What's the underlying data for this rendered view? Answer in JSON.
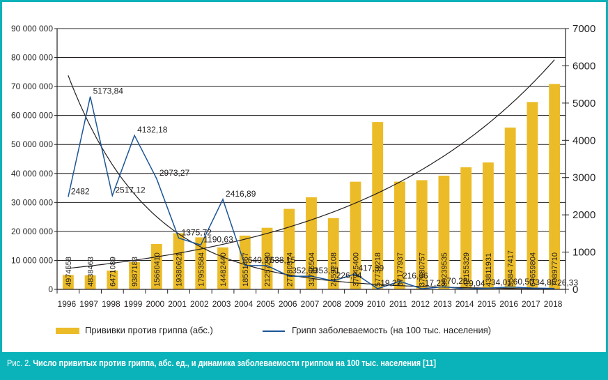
{
  "chart_data": {
    "type": "bar",
    "title": "",
    "categories": [
      "1996",
      "1997",
      "1998",
      "1999",
      "2000",
      "2001",
      "2002",
      "2003",
      "2004",
      "2005",
      "2006",
      "2007",
      "2008",
      "2009",
      "2010",
      "2011",
      "2012",
      "2013",
      "2014",
      "2015",
      "2016",
      "2017",
      "2018"
    ],
    "series": [
      {
        "name": "Прививки против гриппа (абс.)",
        "type": "bar",
        "axis": "left",
        "color": "#ecbc28",
        "values": [
          4974558,
          4838463,
          6471089,
          9387183,
          15660410,
          19380621,
          17953584,
          14482440,
          18551467,
          21257230,
          27780574,
          31786504,
          24592108,
          37145400,
          57731218,
          37177937,
          37680757,
          39239535,
          42155329,
          43811931,
          55847417,
          64659804,
          70897710
        ],
        "labels": [
          "4974558",
          "4838463",
          "6471089",
          "9387183",
          "15660410",
          "19380621",
          "17953584",
          "14482440",
          "18551467",
          "21257230",
          "27780574",
          "31786504",
          "24592108",
          "37145400",
          "57731218",
          "37177937",
          "37680757",
          "39239535",
          "42155329",
          "43811931",
          "5584 7417",
          "64659804",
          "70897710"
        ]
      },
      {
        "name": "Грипп заболеваемость (на 100 тыс. населения)",
        "type": "line",
        "axis": "right",
        "color": "#1c5597",
        "values": [
          2482,
          5173.84,
          2517.12,
          4132.18,
          2973.27,
          1375.72,
          1190.63,
          2416.89,
          640.97,
          638.15,
          352.09,
          353.91,
          226.94,
          417.39,
          19.27,
          216.66,
          17.23,
          70.28,
          9.04,
          34.01,
          60.5,
          34.86,
          26.33
        ],
        "labels": [
          "2482",
          "5173,84",
          "2517,12",
          "4132,18",
          "2973,27",
          "1375,72",
          "1190,63",
          "2416,89",
          "640,97",
          "638,15",
          "352,09",
          "353,91",
          "226,94",
          "417,39",
          "19,27",
          "216,66",
          "17,23",
          "70,28",
          "9,04",
          "34,01",
          "60,50",
          "34,86",
          "26,33"
        ]
      }
    ],
    "trendlines": [
      {
        "name": "bar-trend",
        "kind": "exponential",
        "axis": "left",
        "color": "#231f20"
      },
      {
        "name": "line-trend",
        "kind": "exponential",
        "axis": "right",
        "color": "#231f20"
      }
    ],
    "xlabel": "",
    "ylabel_left": "",
    "ylabel_right": "",
    "ylim_left": [
      0,
      90000000
    ],
    "ylim_right": [
      0,
      7000
    ],
    "yticks_left": [
      "0",
      "10 000 000",
      "20 000 000",
      "30 000 000",
      "40 000 000",
      "50 000 000",
      "60 000 000",
      "70 000 000",
      "80 000 000",
      "90 000 000"
    ],
    "yticks_right": [
      "0",
      "1000",
      "2000",
      "3000",
      "4000",
      "5000",
      "6000",
      "7000"
    ],
    "grid": true,
    "legend_position": "bottom"
  },
  "legend": {
    "bar_label": "Прививки против гриппа (абс.)",
    "line_label": "Грипп заболеваемость (на 100 тыс. населения)"
  },
  "caption": {
    "prefix": "Рис. 2. ",
    "text": "Число привитых против гриппа, абс. ед., и динамика заболеваемости гриппом на 100 тыс. населения [11]"
  }
}
